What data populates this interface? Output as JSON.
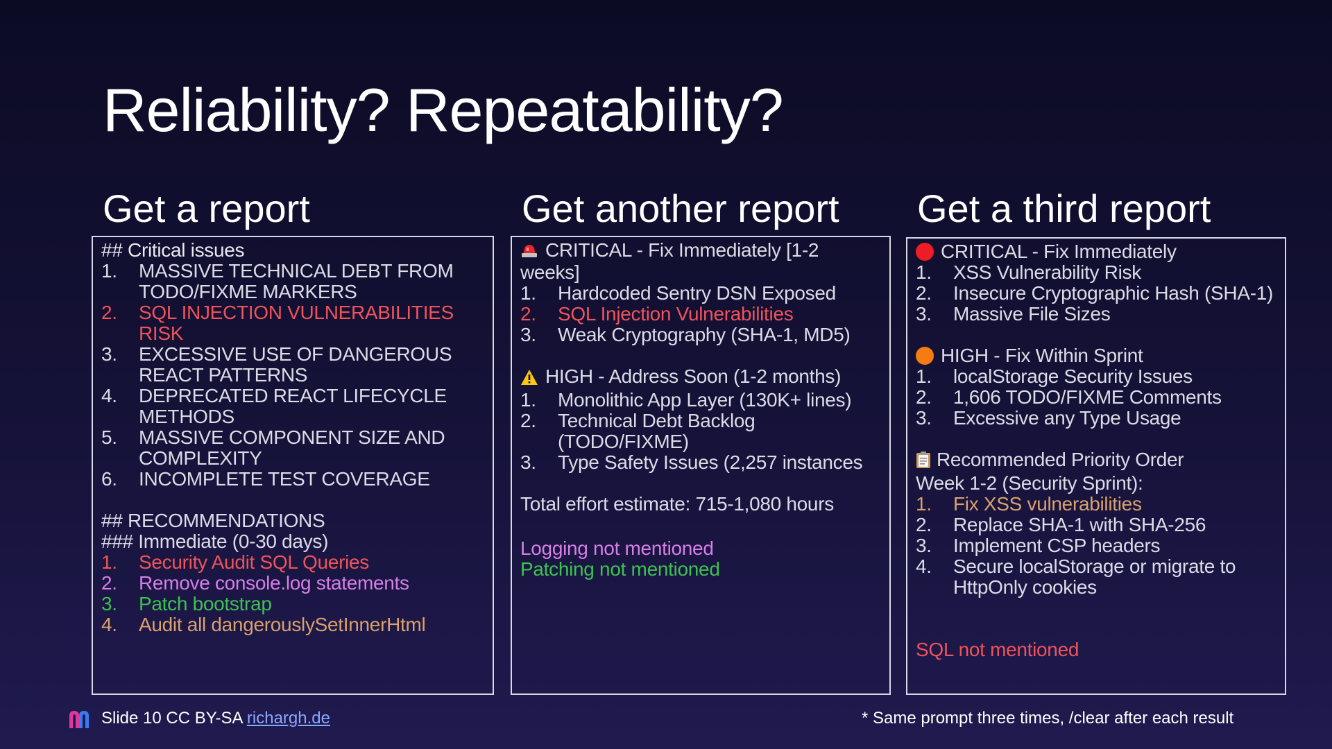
{
  "slide": {
    "title": "Reliability? Repeatability?"
  },
  "columns": [
    {
      "heading": "Get a report",
      "critical_header": "## Critical issues",
      "critical_items": [
        {
          "num": "1.",
          "line1": "MASSIVE TECHNICAL DEBT FROM",
          "line2": "TODO/FIXME MARKERS",
          "color": "#dcdce6"
        },
        {
          "num": "2.",
          "line1": "SQL INJECTION VULNERABILITIES",
          "line2": "RISK",
          "color": "#f0535a"
        },
        {
          "num": "3.",
          "line1": "EXCESSIVE USE OF DANGEROUS",
          "line2": "REACT PATTERNS",
          "color": "#dcdce6"
        },
        {
          "num": "4.",
          "line1": "DEPRECATED REACT LIFECYCLE",
          "line2": "METHODS",
          "color": "#dcdce6"
        },
        {
          "num": "5.",
          "line1": "MASSIVE COMPONENT SIZE AND",
          "line2": "COMPLEXITY",
          "color": "#dcdce6"
        },
        {
          "num": "6.",
          "line1": "INCOMPLETE TEST COVERAGE",
          "line2": "",
          "color": "#dcdce6"
        }
      ],
      "rec_header": "## RECOMMENDATIONS",
      "rec_sub": "### Immediate (0-30 days)",
      "rec_items": [
        {
          "num": "1.",
          "text": "Security Audit SQL Queries",
          "color": "#f0535a"
        },
        {
          "num": "2.",
          "text": "Remove console.log statements",
          "color": "#d77ee6"
        },
        {
          "num": "3.",
          "text": "Patch bootstrap",
          "color": "#3cc24f"
        },
        {
          "num": "4.",
          "text": "Audit all dangerouslySetInnerHtml",
          "color": "#d9a16c"
        }
      ]
    },
    {
      "heading": "Get another report",
      "critical_header_line1": "CRITICAL - Fix Immediately [1-2",
      "critical_header_line2": "weeks]",
      "critical_items": [
        {
          "num": "1.",
          "text": "Hardcoded Sentry DSN Exposed",
          "color": "#dcdce6"
        },
        {
          "num": "2.",
          "text": "SQL Injection Vulnerabilities",
          "color": "#f0535a"
        },
        {
          "num": "3.",
          "text": "Weak Cryptography (SHA-1, MD5)",
          "color": "#dcdce6"
        }
      ],
      "high_header": "HIGH - Address Soon (1-2 months)",
      "high_items": [
        {
          "num": "1.",
          "line1": "Monolithic App Layer (130K+ lines)",
          "line2": ""
        },
        {
          "num": "2.",
          "line1": "Technical Debt Backlog",
          "line2": "(TODO/FIXME)"
        },
        {
          "num": "3.",
          "line1": "Type Safety Issues (2,257 instances",
          "line2": ""
        }
      ],
      "effort": "Total effort estimate: 715-1,080 hours",
      "note_logging": "Logging not mentioned",
      "note_patching": "Patching not mentioned"
    },
    {
      "heading": "Get a third report",
      "critical_header": "CRITICAL - Fix Immediately",
      "critical_items": [
        {
          "num": "1.",
          "text": "XSS Vulnerability Risk"
        },
        {
          "num": "2.",
          "text": "Insecure Cryptographic Hash (SHA-1)"
        },
        {
          "num": "3.",
          "text": "Massive File Sizes"
        }
      ],
      "high_header": "HIGH - Fix Within Sprint",
      "high_items": [
        {
          "num": "1.",
          "text": "localStorage Security Issues"
        },
        {
          "num": "2.",
          "text": "1,606 TODO/FIXME Comments"
        },
        {
          "num": "3.",
          "text": "Excessive any Type Usage"
        }
      ],
      "priority_header": "Recommended Priority Order",
      "priority_sub": "Week 1-2 (Security Sprint):",
      "priority_items": [
        {
          "num": "1.",
          "line1": "Fix XSS vulnerabilities",
          "line2": "",
          "color": "#d9a16c"
        },
        {
          "num": "2.",
          "line1": "Replace SHA-1 with SHA-256",
          "line2": "",
          "color": "#dcdce6"
        },
        {
          "num": "3.",
          "line1": "Implement CSP headers",
          "line2": "",
          "color": "#dcdce6"
        },
        {
          "num": "4.",
          "line1": "Secure localStorage or migrate to",
          "line2": "HttpOnly cookies",
          "color": "#dcdce6"
        }
      ],
      "note_sql": "SQL not mentioned"
    }
  ],
  "footer": {
    "slide_label": "Slide 10 CC BY-SA ",
    "link_text": "richargh.de",
    "note": "* Same prompt three times, /clear after each result"
  },
  "colors": {
    "red": "#f0535a",
    "purple": "#d77ee6",
    "green": "#3cc24f",
    "orange": "#d9a16c"
  },
  "icons": [
    "police-light-icon",
    "warning-icon",
    "red-circle-icon",
    "orange-circle-icon",
    "clipboard-icon",
    "logo-icon"
  ]
}
